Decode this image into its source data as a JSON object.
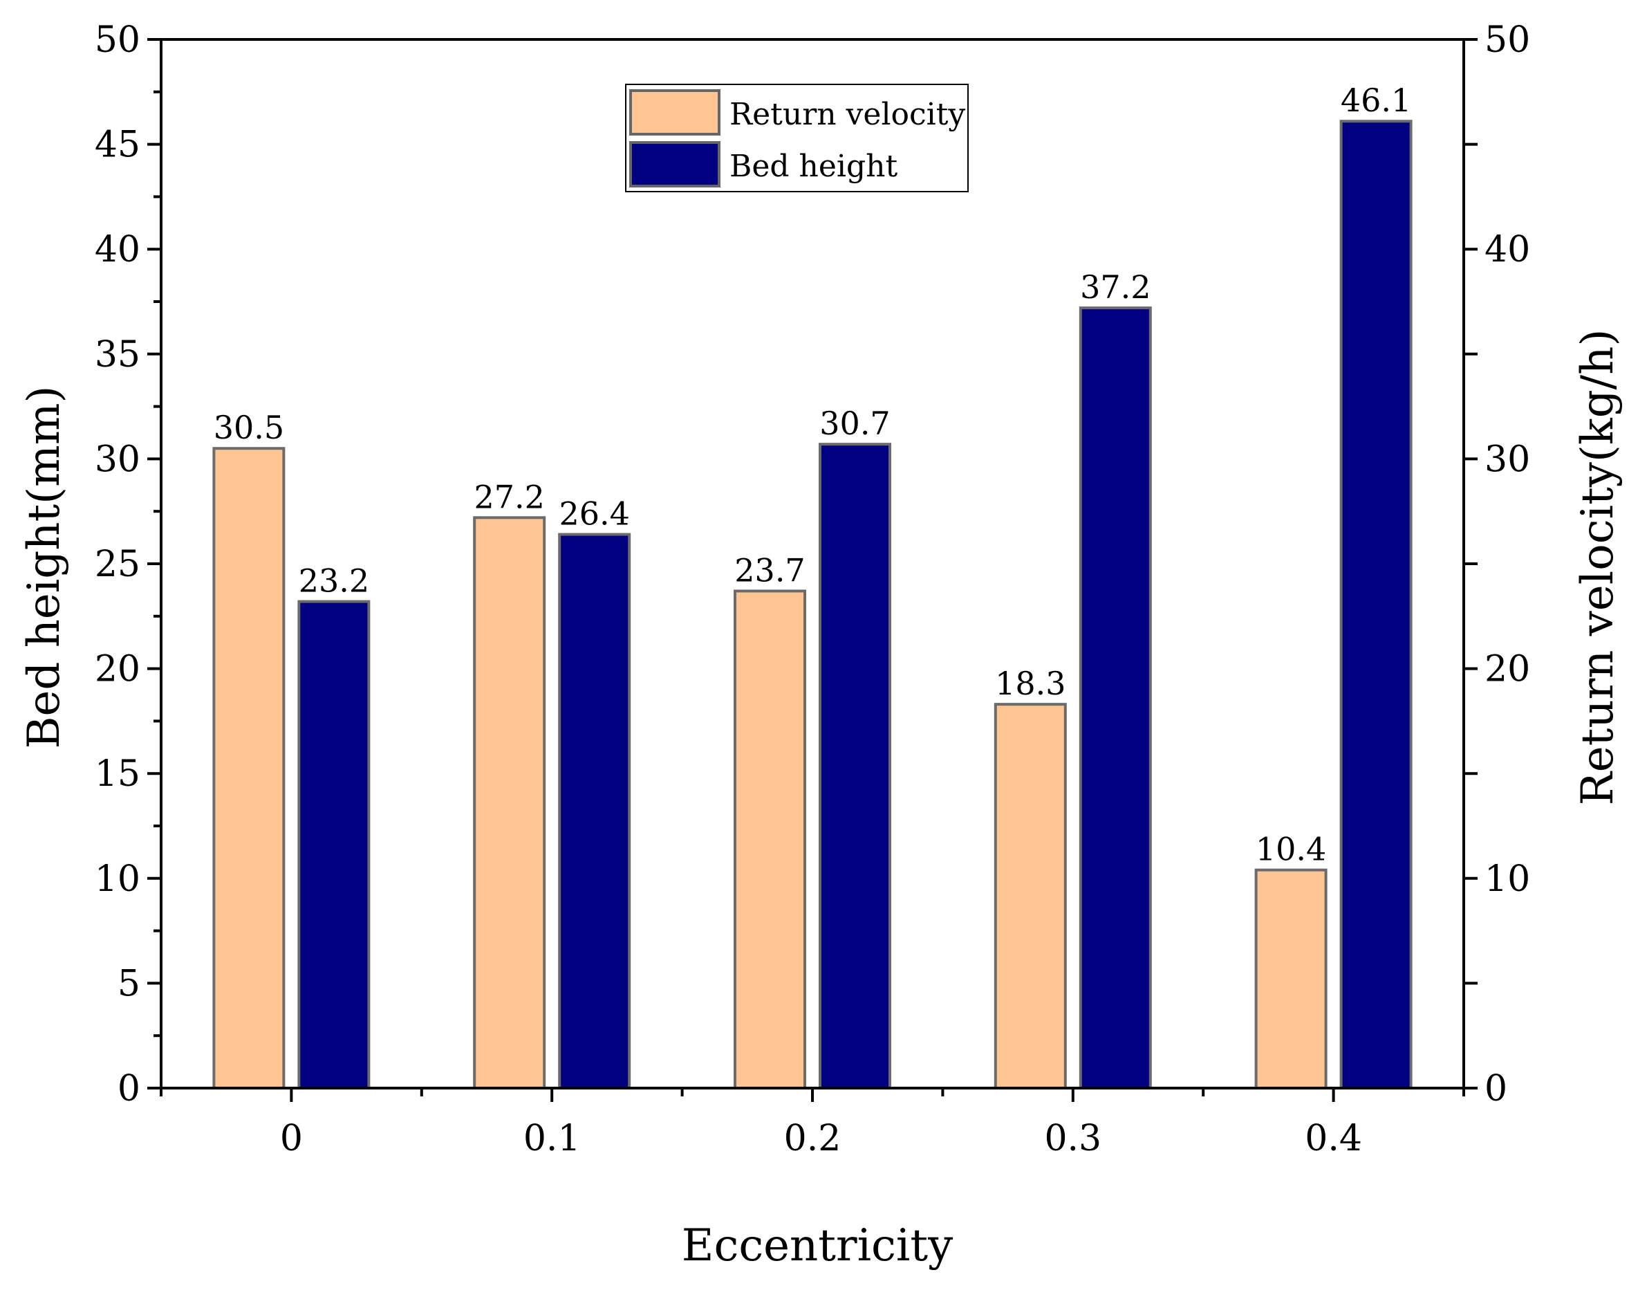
{
  "chart_data": {
    "type": "bar",
    "categories": [
      "0",
      "0.1",
      "0.2",
      "0.3",
      "0.4"
    ],
    "series": [
      {
        "name": "Return velocity",
        "axis": "right",
        "color": "#ffc592",
        "values": [
          30.5,
          27.2,
          23.7,
          18.3,
          10.4
        ],
        "labels": [
          "30.5",
          "27.2",
          "23.7",
          "18.3",
          "10.4"
        ]
      },
      {
        "name": "Bed height",
        "axis": "left",
        "color": "#000080",
        "values": [
          23.2,
          26.4,
          30.7,
          37.2,
          46.1
        ],
        "labels": [
          "23.2",
          "26.4",
          "30.7",
          "37.2",
          "46.1"
        ]
      }
    ],
    "xlabel": "Eccentricity",
    "ylabel": "Bed height(mm)",
    "y2label": "Return velocity(kg/h)",
    "ylim": [
      0,
      50
    ],
    "y2lim": [
      0,
      50
    ],
    "yticks": [
      "0",
      "5",
      "10",
      "15",
      "20",
      "25",
      "30",
      "35",
      "40",
      "45",
      "50"
    ],
    "y2ticks": [
      "0",
      "10",
      "20",
      "30",
      "40",
      "50"
    ],
    "legend_position": "top-center",
    "grid": false
  }
}
